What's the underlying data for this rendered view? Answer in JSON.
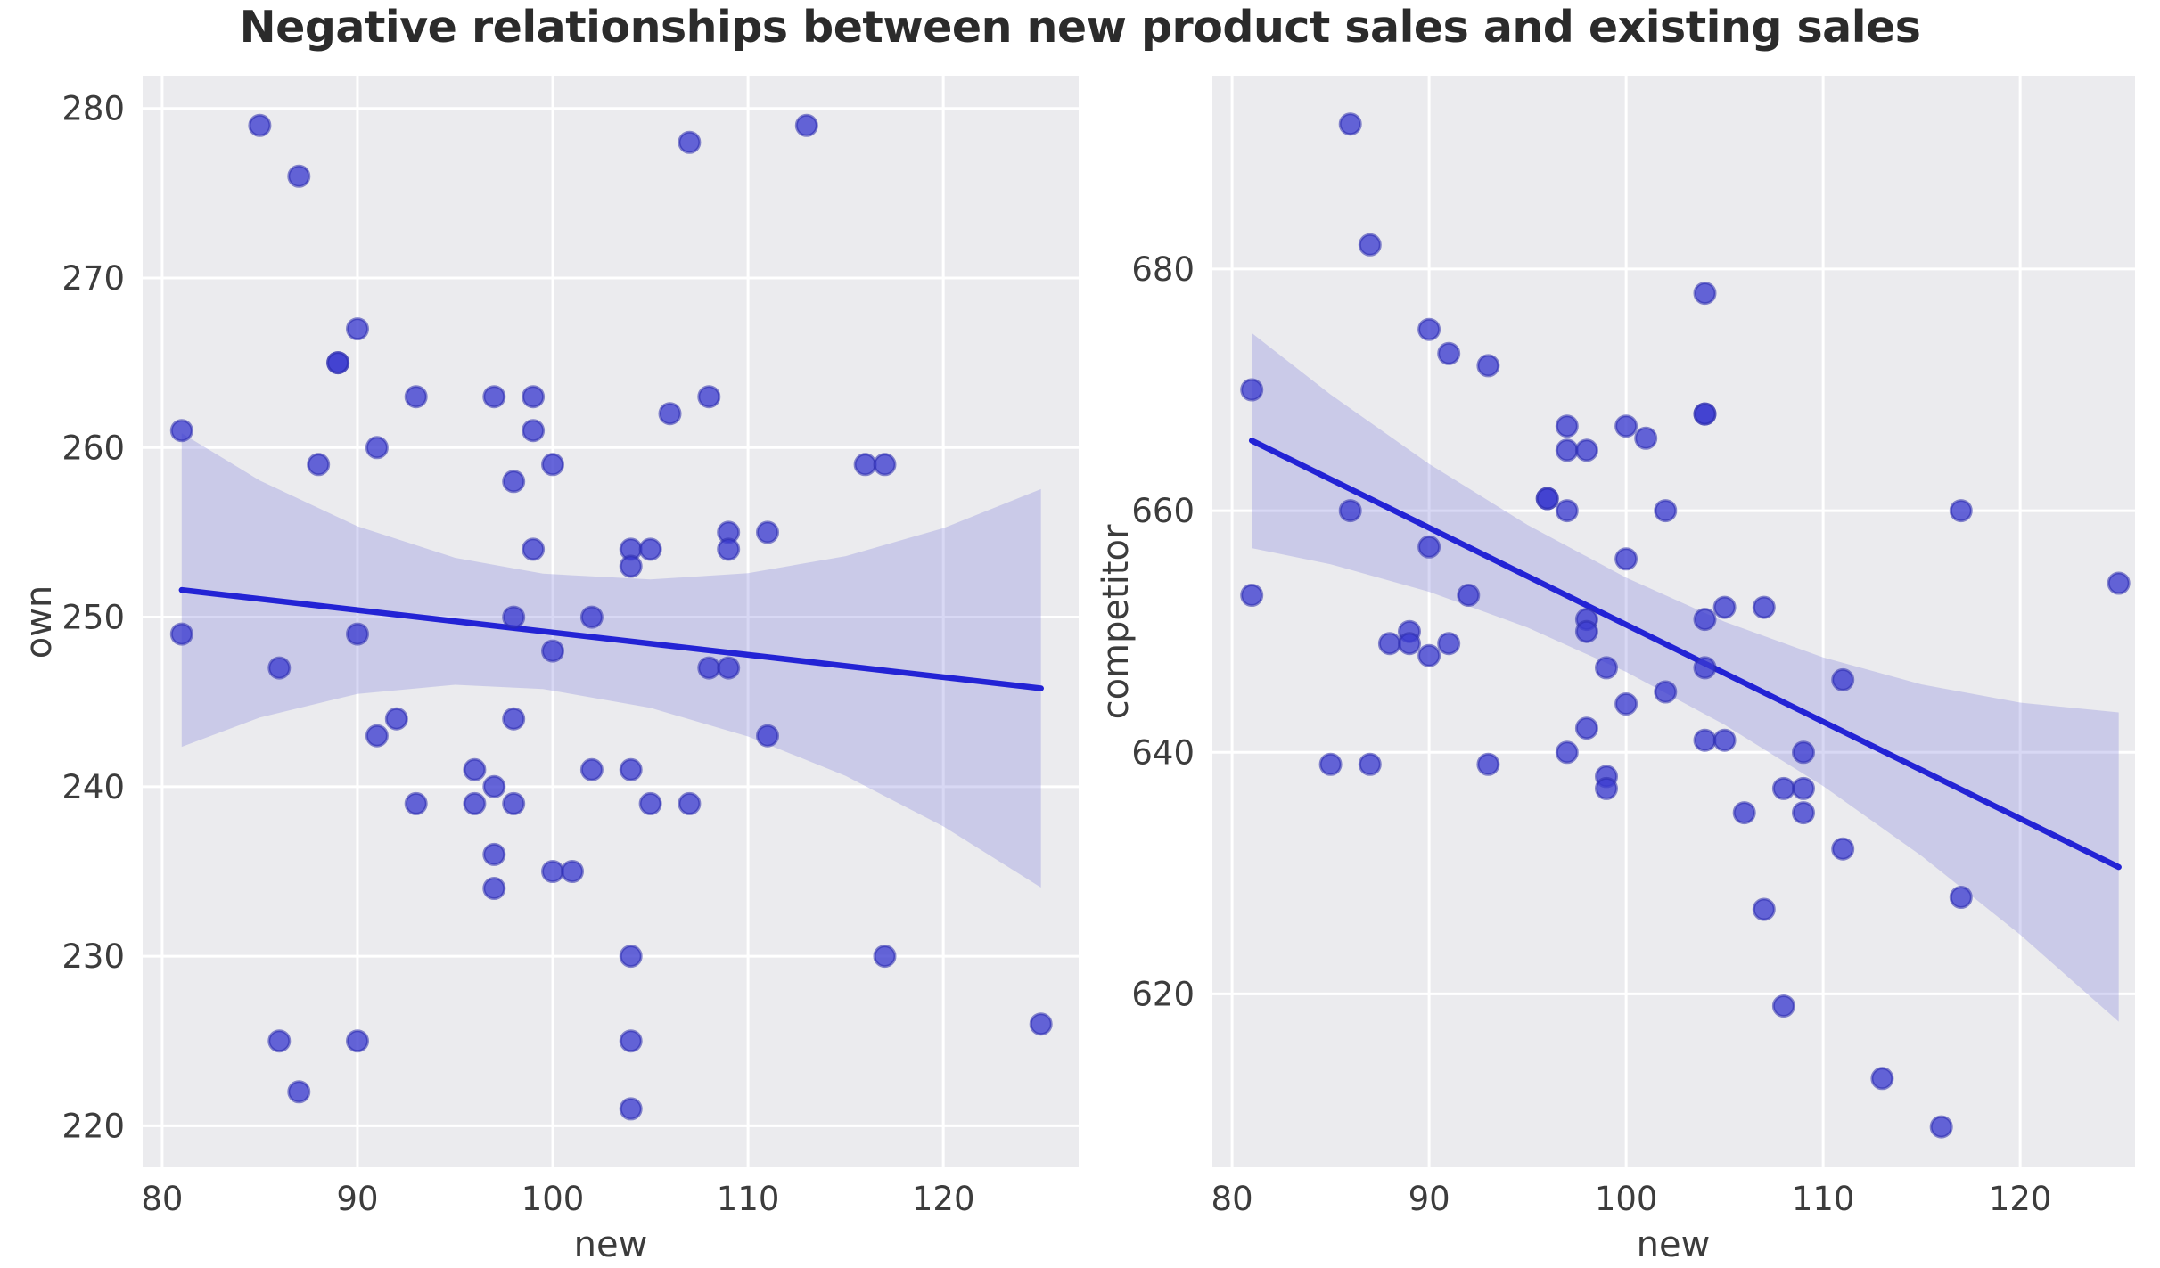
{
  "title": {
    "text": "Negative relationships between new product sales and existing sales"
  },
  "colors": {
    "axes_background": "#ebebee",
    "gridline": "#ffffff",
    "point_fill": "#3b3bd0",
    "point_edge": "#2b2bad",
    "regression_line": "#2323d5",
    "confidence_band": "#8888dd",
    "tick_text": "#3c3c3c",
    "title_text": "#2b2b2b"
  },
  "chart_data": [
    {
      "type": "scatter",
      "title": "",
      "xlabel": "new",
      "ylabel": "own",
      "xlim": [
        79.0,
        126.93
      ],
      "ylim": [
        217.55,
        281.93
      ],
      "x_ticks": [
        80,
        90,
        100,
        110,
        120
      ],
      "y_ticks": [
        220,
        230,
        240,
        250,
        260,
        270,
        280
      ],
      "grid": true,
      "legend_position": "none",
      "points": [
        [
          85,
          279
        ],
        [
          113,
          279
        ],
        [
          107,
          278
        ],
        [
          87,
          276
        ],
        [
          90,
          267
        ],
        [
          89,
          265
        ],
        [
          89,
          265
        ],
        [
          93,
          263
        ],
        [
          97,
          263
        ],
        [
          99,
          263
        ],
        [
          108,
          263
        ],
        [
          106,
          262
        ],
        [
          81,
          261
        ],
        [
          99,
          261
        ],
        [
          91,
          260
        ],
        [
          88,
          259
        ],
        [
          100,
          259
        ],
        [
          116,
          259
        ],
        [
          117,
          259
        ],
        [
          98,
          258
        ],
        [
          109,
          255
        ],
        [
          111,
          255
        ],
        [
          99,
          254
        ],
        [
          104,
          254
        ],
        [
          105,
          254
        ],
        [
          109,
          254
        ],
        [
          104,
          253
        ],
        [
          98,
          250
        ],
        [
          102,
          250
        ],
        [
          81,
          249
        ],
        [
          90,
          249
        ],
        [
          100,
          248
        ],
        [
          86,
          247
        ],
        [
          108,
          247
        ],
        [
          109,
          247
        ],
        [
          92,
          244
        ],
        [
          98,
          244
        ],
        [
          91,
          243
        ],
        [
          111,
          243
        ],
        [
          96,
          241
        ],
        [
          102,
          241
        ],
        [
          104,
          241
        ],
        [
          97,
          240
        ],
        [
          93,
          239
        ],
        [
          96,
          239
        ],
        [
          98,
          239
        ],
        [
          105,
          239
        ],
        [
          107,
          239
        ],
        [
          97,
          236
        ],
        [
          100,
          235
        ],
        [
          101,
          235
        ],
        [
          97,
          234
        ],
        [
          104,
          230
        ],
        [
          117,
          230
        ],
        [
          86,
          225
        ],
        [
          90,
          225
        ],
        [
          104,
          225
        ],
        [
          125,
          226
        ],
        [
          87,
          222
        ],
        [
          104,
          221
        ]
      ],
      "regression_line": {
        "x": [
          81,
          125
        ],
        "y": [
          251.6,
          245.8
        ]
      },
      "ci_band": {
        "x": [
          81,
          85,
          90,
          95,
          99.5,
          105,
          110,
          115,
          120,
          125
        ],
        "lo": [
          242.35,
          244.08,
          245.47,
          246.01,
          245.76,
          244.65,
          242.96,
          240.63,
          237.66,
          234.05
        ],
        "hi": [
          260.85,
          258.06,
          255.36,
          253.5,
          252.56,
          252.22,
          252.59,
          253.6,
          255.25,
          257.55
        ]
      }
    },
    {
      "type": "scatter",
      "title": "",
      "xlabel": "new",
      "ylabel": "competitor",
      "xlim": [
        79.0,
        125.83
      ],
      "ylim": [
        605.65,
        696.0
      ],
      "x_ticks": [
        80,
        90,
        100,
        110,
        120
      ],
      "y_ticks": [
        620,
        640,
        660,
        680
      ],
      "grid": true,
      "legend_position": "none",
      "points": [
        [
          86,
          692
        ],
        [
          87,
          682
        ],
        [
          104,
          678
        ],
        [
          90,
          675
        ],
        [
          91,
          673
        ],
        [
          93,
          672
        ],
        [
          81,
          670
        ],
        [
          104,
          668
        ],
        [
          104,
          668
        ],
        [
          97,
          667
        ],
        [
          100,
          667
        ],
        [
          101,
          666
        ],
        [
          97,
          665
        ],
        [
          98,
          665
        ],
        [
          96,
          661
        ],
        [
          96,
          661
        ],
        [
          86,
          660
        ],
        [
          97,
          660
        ],
        [
          102,
          660
        ],
        [
          117,
          660
        ],
        [
          90,
          657
        ],
        [
          100,
          656
        ],
        [
          125,
          654
        ],
        [
          81,
          653
        ],
        [
          92,
          653
        ],
        [
          105,
          652
        ],
        [
          107,
          652
        ],
        [
          104,
          651
        ],
        [
          98,
          651
        ],
        [
          89,
          650
        ],
        [
          98,
          650
        ],
        [
          88,
          649
        ],
        [
          89,
          649
        ],
        [
          91,
          649
        ],
        [
          90,
          648
        ],
        [
          99,
          647
        ],
        [
          104,
          647
        ],
        [
          111,
          646
        ],
        [
          102,
          645
        ],
        [
          100,
          644
        ],
        [
          98,
          642
        ],
        [
          104,
          641
        ],
        [
          105,
          641
        ],
        [
          97,
          640
        ],
        [
          109,
          640
        ],
        [
          85,
          639
        ],
        [
          87,
          639
        ],
        [
          93,
          639
        ],
        [
          99,
          638
        ],
        [
          99,
          637
        ],
        [
          108,
          637
        ],
        [
          109,
          637
        ],
        [
          106,
          635
        ],
        [
          109,
          635
        ],
        [
          111,
          632
        ],
        [
          117,
          628
        ],
        [
          107,
          627
        ],
        [
          108,
          619
        ],
        [
          113,
          613
        ],
        [
          116,
          609
        ]
      ],
      "regression_line": {
        "x": [
          81,
          125
        ],
        "y": [
          665.8,
          630.5
        ]
      },
      "ci_band": {
        "x": [
          81,
          85,
          90,
          95,
          100,
          105,
          110,
          115,
          120,
          125
        ],
        "lo": [
          656.9,
          655.57,
          653.29,
          650.32,
          646.66,
          642.28,
          637.21,
          631.42,
          624.91,
          617.7
        ],
        "hi": [
          674.7,
          669.61,
          663.87,
          658.82,
          654.46,
          650.8,
          647.85,
          645.62,
          644.11,
          643.3
        ]
      }
    }
  ]
}
